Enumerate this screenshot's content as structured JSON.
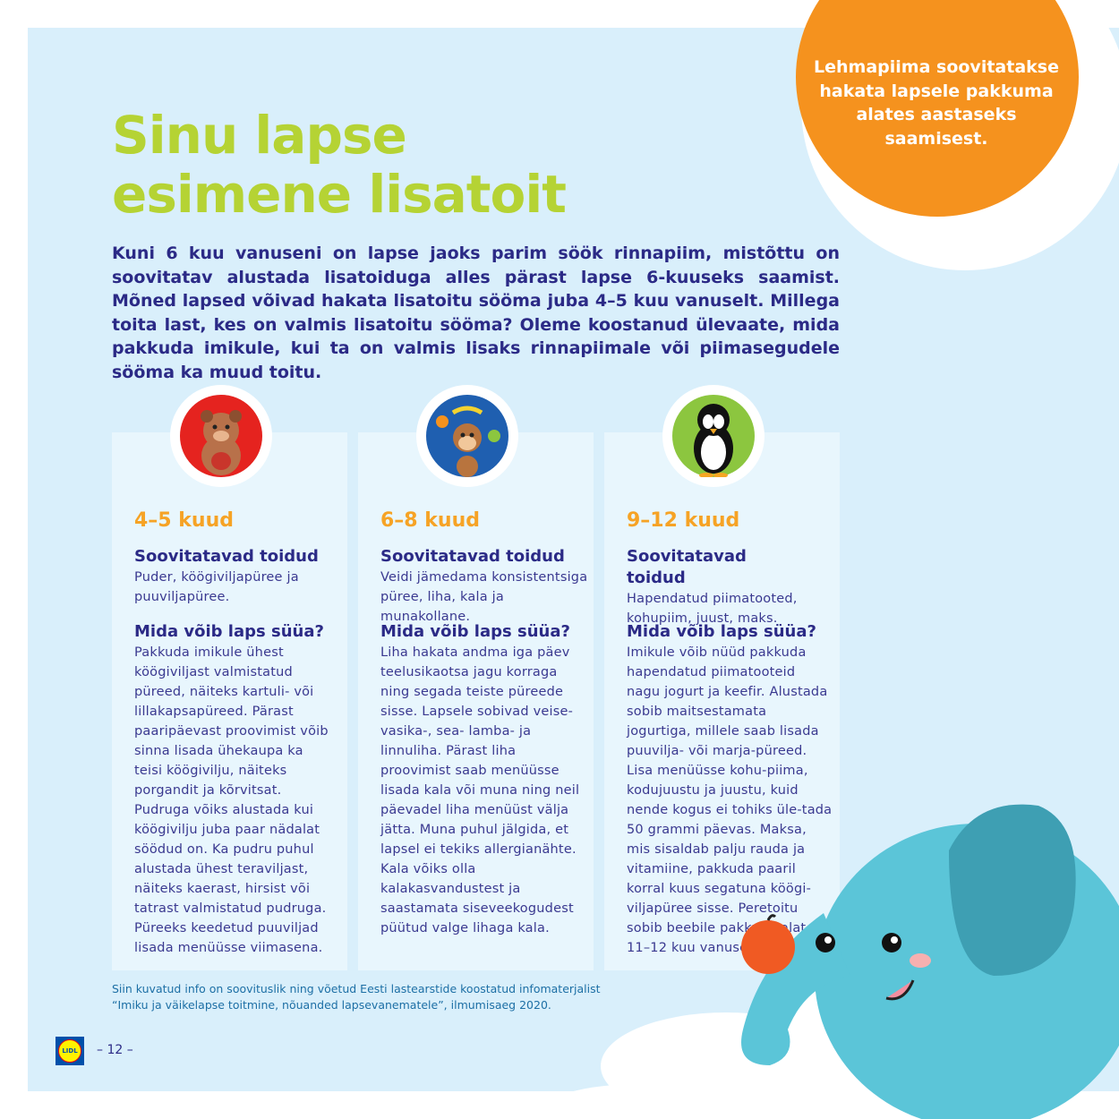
{
  "title": {
    "line1": "Sinu lapse",
    "line2": "esimene lisatoit"
  },
  "intro": "Kuni 6 kuu vanuseni on lapse jaoks parim söök rinnapiim, mistõttu on soovitatav alustada lisatoiduga alles pärast lapse 6-kuuseks saamist. Mõned lapsed võivad hakata lisatoitu sööma juba 4–5 kuu vanuselt. Millega toita last, kes on valmis lisatoitu sööma? Oleme koostanud ülevaate, mida pakkuda imikule, kui ta on valmis lisaks rinnapiimale või piimasegudele sööma ka muud toitu.",
  "badge": "Lehmapiima soovitatakse hakata lapsele pakkuma alates aastaseks saamisest.",
  "colors": {
    "title": "#b5d334",
    "navy": "#2b2a86",
    "orange": "#f5921e",
    "background": "#d9effb",
    "card": "#e8f6fd",
    "elephant": "#5bc5d8"
  },
  "cards": [
    {
      "icon": "bear-icon",
      "age": "4–5 kuud",
      "h1": "Soovitatavad toidud",
      "p1": "Puder, köögiviljapüree ja puuviljapüree.",
      "h2": "Mida võib laps süüa?",
      "p2": "Pakkuda imikule ühest köögiviljast valmistatud püreed, näiteks kartuli- või lillakapsapüreed. Pärast paaripäevast proovimist võib sinna lisada ühekaupa ka teisi köögivilju, näiteks porgandit ja kõrvitsat. Pudruga võiks alustada kui köögivilju juba paar nädalat söödud on. Ka pudru puhul alustada ühest teraviljast, näiteks kaerast, hirsist või tatrast valmistatud pudruga. Püreeks keedetud puuviljad lisada menüüsse viimasena."
    },
    {
      "icon": "monkey-icon",
      "age": "6–8 kuud",
      "h1": "Soovitatavad toidud",
      "p1": "Veidi jämedama konsistentsiga püree, liha, kala ja munakollane.",
      "h2": "Mida võib laps süüa?",
      "p2": "Liha hakata andma iga päev teelusikaotsa jagu korraga ning segada teiste püreede sisse. Lapsele sobivad veise-vasika-, sea- lamba- ja linnuliha. Pärast liha proovimist saab menüüsse lisada kala või muna ning neil päevadel liha menüüst välja jätta. Muna puhul jälgida, et lapsel ei tekiks allergianähte. Kala võiks olla kalakasvandustest ja saastamata siseveekogudest püütud valge lihaga kala."
    },
    {
      "icon": "penguin-icon",
      "age": "9–12 kuud",
      "h1": "Soovitatavad toidud",
      "p1": "Hapendatud piimatooted, kohupiim, juust, maks.",
      "h2": "Mida võib laps süüa?",
      "p2": "Imikule võib nüüd pakkuda hapendatud piimatooteid nagu jogurt ja keefir. Alustada sobib maitsestamata jogurtiga, millele saab lisada puuvilja- või marja-püreed. Lisa menüüsse kohu-piima, kodujuustu ja juustu, kuid nende kogus ei tohiks üle-tada 50 grammi päevas. Maksa, mis sisaldab palju rauda ja vitamiine, pakkuda paaril korral kuus segatuna köögi-viljapüree sisse. Peretoitu sobib beebile pakkuda alates 11–12 kuu vanusest."
    }
  ],
  "note": {
    "line1": "Siin kuvatud info on soovituslik ning võetud Eesti lastearstide koostatud infomaterjalist",
    "line2": "“Imiku ja väikelapse toitmine, nõuanded lapsevanematele”, ilmumisaeg 2020."
  },
  "logo": "LIDL",
  "page_number": "– 12 –"
}
